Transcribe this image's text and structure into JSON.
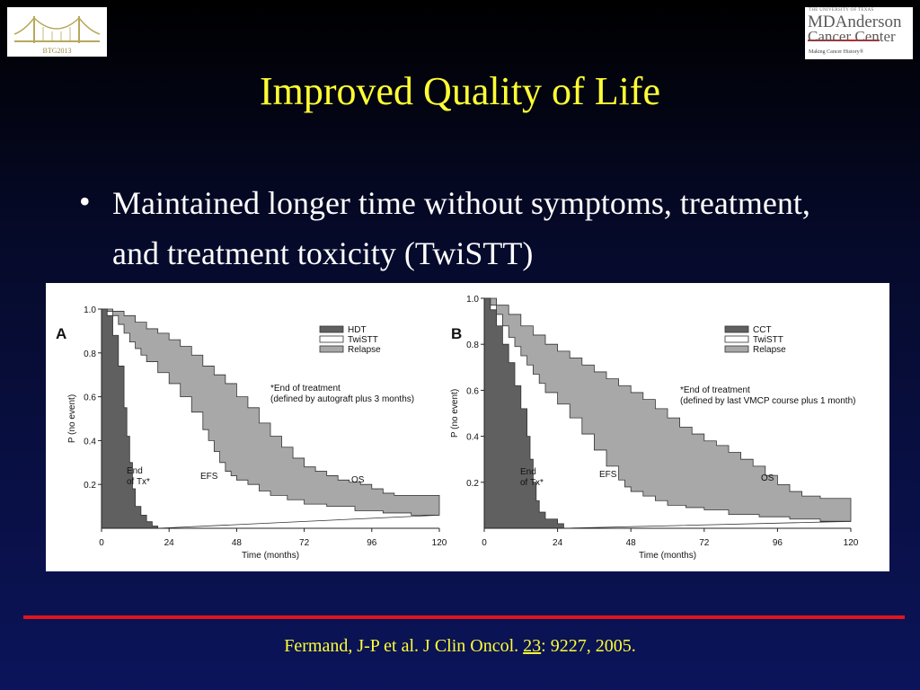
{
  "logos": {
    "left_text": "BTG2013",
    "right_top": "THE UNIVERSITY OF TEXAS",
    "right_line1": "MDAnderson",
    "right_line2": "Cancer Center",
    "right_tagline": "Making Cancer History®"
  },
  "slide": {
    "title": "Improved Quality of Life",
    "bullet": "Maintained longer time without symptoms, treatment, and treatment toxicity (TwiSTT)",
    "bullet_char": "•"
  },
  "citation": {
    "before": "Fermand, J-P et al. J Clin Oncol. ",
    "volume": "23",
    "after": ": 9227, 2005."
  },
  "colors": {
    "title": "#ffff33",
    "dark_band": "#606060",
    "light_band": "#a8a8a8",
    "red_rule": "#e0141e"
  },
  "chart_data": [
    {
      "type": "area",
      "panel": "A",
      "xlabel": "Time (months)",
      "ylabel": "P (no event)",
      "xlim": [
        0,
        120
      ],
      "ylim": [
        0,
        1.0
      ],
      "xticks": [
        0,
        24,
        48,
        72,
        96,
        120
      ],
      "yticks": [
        0.2,
        0.4,
        0.6,
        0.8,
        1.0
      ],
      "ytick_labels": [
        "0.2",
        "0.4",
        "0.6",
        "0.8",
        "1.0"
      ],
      "legend": [
        "HDT",
        "TwiSTT",
        "Relapse"
      ],
      "legend_placement": "top-right",
      "note": [
        "*End of treatment",
        "(defined by autograft plus 3 months)"
      ],
      "labels": {
        "end_tx": [
          "End",
          "of Tx*"
        ],
        "efs": "EFS",
        "os": "OS"
      },
      "curves": {
        "end_of_tx": [
          [
            0,
            1.0
          ],
          [
            2,
            0.97
          ],
          [
            4,
            0.88
          ],
          [
            6,
            0.74
          ],
          [
            8,
            0.55
          ],
          [
            9,
            0.42
          ],
          [
            10,
            0.3
          ],
          [
            11,
            0.18
          ],
          [
            12,
            0.1
          ],
          [
            14,
            0.06
          ],
          [
            16,
            0.03
          ],
          [
            18,
            0.01
          ],
          [
            20,
            0.0
          ]
        ],
        "efs": [
          [
            0,
            1.0
          ],
          [
            2,
            0.99
          ],
          [
            4,
            0.97
          ],
          [
            6,
            0.93
          ],
          [
            8,
            0.89
          ],
          [
            10,
            0.85
          ],
          [
            12,
            0.82
          ],
          [
            14,
            0.79
          ],
          [
            16,
            0.76
          ],
          [
            20,
            0.71
          ],
          [
            24,
            0.66
          ],
          [
            28,
            0.6
          ],
          [
            32,
            0.53
          ],
          [
            36,
            0.45
          ],
          [
            38,
            0.4
          ],
          [
            40,
            0.35
          ],
          [
            42,
            0.3
          ],
          [
            44,
            0.26
          ],
          [
            46,
            0.24
          ],
          [
            48,
            0.22
          ],
          [
            52,
            0.2
          ],
          [
            56,
            0.17
          ],
          [
            60,
            0.15
          ],
          [
            66,
            0.13
          ],
          [
            72,
            0.11
          ],
          [
            80,
            0.1
          ],
          [
            90,
            0.08
          ],
          [
            100,
            0.07
          ],
          [
            110,
            0.06
          ],
          [
            120,
            0.06
          ]
        ],
        "os": [
          [
            0,
            1.0
          ],
          [
            4,
            0.99
          ],
          [
            8,
            0.97
          ],
          [
            12,
            0.94
          ],
          [
            16,
            0.91
          ],
          [
            20,
            0.89
          ],
          [
            24,
            0.86
          ],
          [
            28,
            0.83
          ],
          [
            32,
            0.79
          ],
          [
            36,
            0.74
          ],
          [
            40,
            0.7
          ],
          [
            44,
            0.66
          ],
          [
            48,
            0.6
          ],
          [
            52,
            0.55
          ],
          [
            56,
            0.48
          ],
          [
            60,
            0.42
          ],
          [
            64,
            0.37
          ],
          [
            68,
            0.32
          ],
          [
            72,
            0.28
          ],
          [
            76,
            0.26
          ],
          [
            80,
            0.24
          ],
          [
            84,
            0.22
          ],
          [
            88,
            0.21
          ],
          [
            92,
            0.2
          ],
          [
            96,
            0.18
          ],
          [
            100,
            0.16
          ],
          [
            104,
            0.15
          ],
          [
            110,
            0.15
          ],
          [
            120,
            0.15
          ]
        ]
      }
    },
    {
      "type": "area",
      "panel": "B",
      "xlabel": "Time (months)",
      "ylabel": "P (no event)",
      "xlim": [
        0,
        120
      ],
      "ylim": [
        0,
        1.0
      ],
      "xticks": [
        0,
        24,
        48,
        72,
        96,
        120
      ],
      "yticks": [
        0.2,
        0.4,
        0.6,
        0.8,
        1.0
      ],
      "ytick_labels": [
        "0.2",
        "0.4",
        "0.6",
        "0.8",
        "1.0"
      ],
      "legend": [
        "CCT",
        "TwiSTT",
        "Relapse"
      ],
      "legend_placement": "top-right",
      "note": [
        "*End of treatment",
        "(defined by last VMCP course plus 1 month)"
      ],
      "labels": {
        "end_tx": [
          "End",
          "of Tx*"
        ],
        "efs": "EFS",
        "os": "OS"
      },
      "curves": {
        "end_of_tx": [
          [
            0,
            1.0
          ],
          [
            2,
            0.95
          ],
          [
            4,
            0.88
          ],
          [
            6,
            0.8
          ],
          [
            8,
            0.72
          ],
          [
            10,
            0.62
          ],
          [
            12,
            0.52
          ],
          [
            14,
            0.4
          ],
          [
            15,
            0.3
          ],
          [
            16,
            0.2
          ],
          [
            17,
            0.12
          ],
          [
            18,
            0.07
          ],
          [
            20,
            0.04
          ],
          [
            24,
            0.02
          ],
          [
            26,
            0.0
          ]
        ],
        "efs": [
          [
            0,
            1.0
          ],
          [
            2,
            0.97
          ],
          [
            4,
            0.93
          ],
          [
            6,
            0.88
          ],
          [
            8,
            0.83
          ],
          [
            10,
            0.79
          ],
          [
            12,
            0.75
          ],
          [
            14,
            0.71
          ],
          [
            16,
            0.67
          ],
          [
            18,
            0.63
          ],
          [
            20,
            0.59
          ],
          [
            24,
            0.54
          ],
          [
            28,
            0.48
          ],
          [
            32,
            0.41
          ],
          [
            36,
            0.34
          ],
          [
            40,
            0.27
          ],
          [
            44,
            0.21
          ],
          [
            46,
            0.18
          ],
          [
            48,
            0.16
          ],
          [
            52,
            0.14
          ],
          [
            56,
            0.12
          ],
          [
            60,
            0.1
          ],
          [
            66,
            0.09
          ],
          [
            72,
            0.08
          ],
          [
            80,
            0.06
          ],
          [
            90,
            0.05
          ],
          [
            100,
            0.04
          ],
          [
            110,
            0.03
          ],
          [
            120,
            0.03
          ]
        ],
        "os": [
          [
            0,
            1.0
          ],
          [
            4,
            0.97
          ],
          [
            8,
            0.93
          ],
          [
            12,
            0.88
          ],
          [
            16,
            0.84
          ],
          [
            20,
            0.8
          ],
          [
            24,
            0.77
          ],
          [
            28,
            0.74
          ],
          [
            32,
            0.71
          ],
          [
            36,
            0.68
          ],
          [
            40,
            0.65
          ],
          [
            44,
            0.62
          ],
          [
            48,
            0.59
          ],
          [
            52,
            0.56
          ],
          [
            56,
            0.52
          ],
          [
            60,
            0.48
          ],
          [
            64,
            0.44
          ],
          [
            68,
            0.41
          ],
          [
            72,
            0.38
          ],
          [
            76,
            0.36
          ],
          [
            80,
            0.33
          ],
          [
            84,
            0.3
          ],
          [
            88,
            0.27
          ],
          [
            92,
            0.23
          ],
          [
            96,
            0.19
          ],
          [
            100,
            0.16
          ],
          [
            104,
            0.14
          ],
          [
            110,
            0.13
          ],
          [
            120,
            0.13
          ]
        ]
      }
    }
  ]
}
